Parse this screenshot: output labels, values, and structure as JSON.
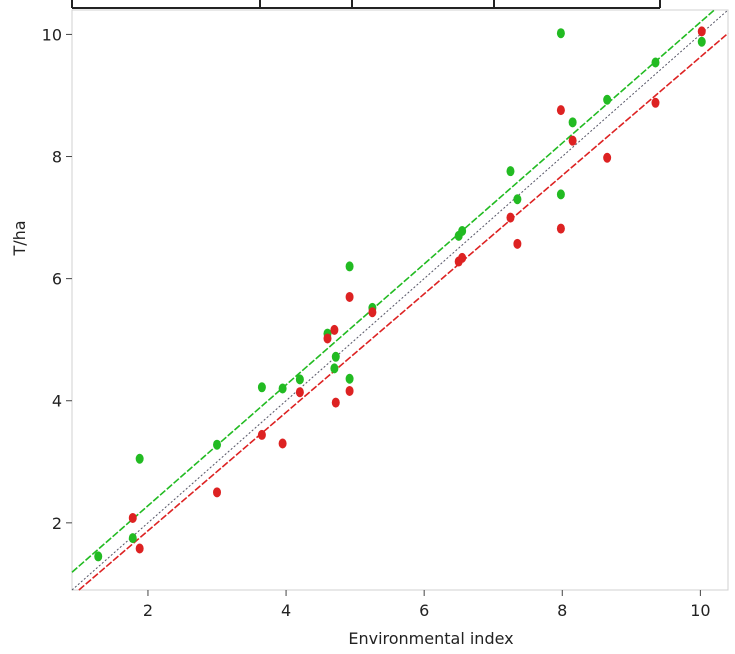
{
  "chart_data": {
    "type": "scatter",
    "xlabel": "Environmental index",
    "ylabel": "T/ha",
    "xlim": [
      0.9,
      10.4
    ],
    "ylim": [
      0.9,
      10.4
    ],
    "xticks": [
      2,
      4,
      6,
      8,
      10
    ],
    "yticks": [
      2,
      4,
      6,
      8,
      10
    ],
    "grid": false,
    "colors": {
      "green": "#22bb22",
      "red": "#dd2222",
      "reference": "#555566"
    },
    "series": [
      {
        "color": "#22bb22",
        "points": [
          [
            1.28,
            1.45
          ],
          [
            1.78,
            1.75
          ],
          [
            1.88,
            3.05
          ],
          [
            3.0,
            3.28
          ],
          [
            3.65,
            4.22
          ],
          [
            3.95,
            4.2
          ],
          [
            4.2,
            4.35
          ],
          [
            4.6,
            5.1
          ],
          [
            4.7,
            4.53
          ],
          [
            4.72,
            4.72
          ],
          [
            4.92,
            4.36
          ],
          [
            4.92,
            6.2
          ],
          [
            5.25,
            5.52
          ],
          [
            6.5,
            6.7
          ],
          [
            6.55,
            6.78
          ],
          [
            7.25,
            7.76
          ],
          [
            7.35,
            7.3
          ],
          [
            7.98,
            7.38
          ],
          [
            7.98,
            10.02
          ],
          [
            8.15,
            8.56
          ],
          [
            8.65,
            8.93
          ],
          [
            9.35,
            9.54
          ],
          [
            10.02,
            9.88
          ]
        ],
        "fit": {
          "slope": 0.99,
          "intercept": 0.3
        }
      },
      {
        "color": "#dd2222",
        "points": [
          [
            1.78,
            2.08
          ],
          [
            1.88,
            1.58
          ],
          [
            3.0,
            2.5
          ],
          [
            3.65,
            3.44
          ],
          [
            3.95,
            3.3
          ],
          [
            4.2,
            4.14
          ],
          [
            4.6,
            5.02
          ],
          [
            4.7,
            5.16
          ],
          [
            4.72,
            3.97
          ],
          [
            4.92,
            4.16
          ],
          [
            4.92,
            5.7
          ],
          [
            5.25,
            5.45
          ],
          [
            6.5,
            6.28
          ],
          [
            6.55,
            6.34
          ],
          [
            7.25,
            7.0
          ],
          [
            7.35,
            6.57
          ],
          [
            7.98,
            8.76
          ],
          [
            7.98,
            6.82
          ],
          [
            8.15,
            8.26
          ],
          [
            8.65,
            7.98
          ],
          [
            9.35,
            8.88
          ],
          [
            10.02,
            10.05
          ]
        ],
        "fit": {
          "slope": 0.97,
          "intercept": -0.07
        }
      }
    ],
    "reference_line": {
      "slope": 1,
      "intercept": 0
    }
  }
}
